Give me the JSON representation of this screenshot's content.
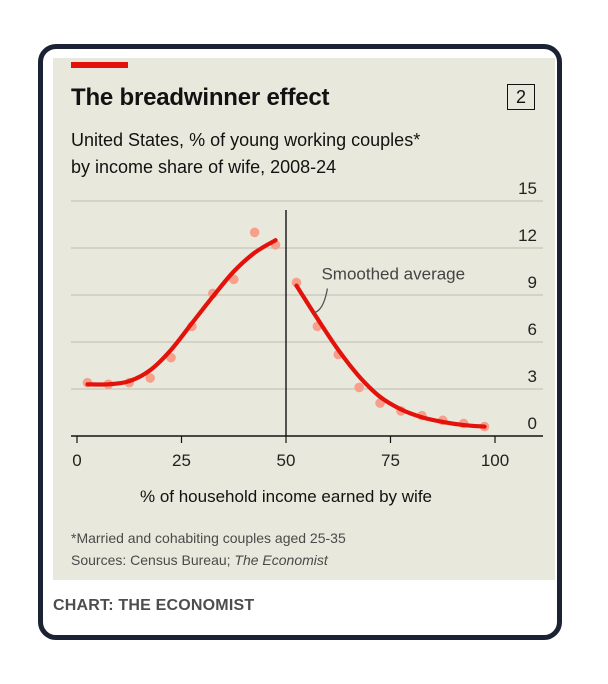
{
  "title": "The breadwinner effect",
  "chart_number": "2",
  "subtitle_lines": [
    "United States, % of young working couples*",
    "by income share of wife, 2008-24"
  ],
  "annotation": "Smoothed average",
  "footnote": "*Married and cohabiting couples aged 25-35",
  "sources_prefix": "Sources: Census Bureau; ",
  "sources_italic": "The Economist",
  "credit": "CHART: THE ECONOMIST",
  "colors": {
    "accent": "#e3120b",
    "dots": "#f6a08c",
    "panel": "#e9e8dc"
  },
  "chart_data": {
    "type": "line",
    "xlabel": "% of household income earned by wife",
    "ylabel": "",
    "xlim": [
      0,
      100
    ],
    "ylim": [
      0,
      15
    ],
    "x_ticks": [
      0,
      25,
      50,
      75,
      100
    ],
    "y_ticks": [
      0,
      3,
      6,
      9,
      12,
      15
    ],
    "grid": true,
    "divider_x": 50,
    "series": [
      {
        "kind": "scatter",
        "points": [
          [
            2.5,
            3.4
          ],
          [
            7.5,
            3.3
          ],
          [
            12.5,
            3.4
          ],
          [
            17.5,
            3.7
          ],
          [
            22.5,
            5.0
          ],
          [
            27.5,
            7.0
          ],
          [
            32.5,
            9.1
          ],
          [
            37.5,
            10.0
          ],
          [
            42.5,
            13.0
          ],
          [
            47.5,
            12.2
          ],
          [
            52.5,
            9.8
          ],
          [
            57.5,
            7.0
          ],
          [
            62.5,
            5.2
          ],
          [
            67.5,
            3.1
          ],
          [
            72.5,
            2.1
          ],
          [
            77.5,
            1.6
          ],
          [
            82.5,
            1.3
          ],
          [
            87.5,
            1.0
          ],
          [
            92.5,
            0.8
          ],
          [
            97.5,
            0.6
          ]
        ]
      },
      {
        "kind": "line",
        "segment": "below-half",
        "points": [
          [
            2.5,
            3.3
          ],
          [
            7.5,
            3.3
          ],
          [
            12.5,
            3.5
          ],
          [
            17.5,
            4.2
          ],
          [
            22.5,
            5.5
          ],
          [
            27.5,
            7.2
          ],
          [
            32.5,
            8.9
          ],
          [
            37.5,
            10.5
          ],
          [
            42.5,
            11.7
          ],
          [
            47.5,
            12.5
          ]
        ]
      },
      {
        "kind": "line",
        "segment": "above-half",
        "points": [
          [
            52.5,
            9.6
          ],
          [
            57.5,
            7.5
          ],
          [
            62.5,
            5.5
          ],
          [
            67.5,
            3.8
          ],
          [
            72.5,
            2.5
          ],
          [
            77.5,
            1.7
          ],
          [
            82.5,
            1.2
          ],
          [
            87.5,
            0.9
          ],
          [
            92.5,
            0.7
          ],
          [
            97.5,
            0.6
          ]
        ]
      }
    ]
  }
}
